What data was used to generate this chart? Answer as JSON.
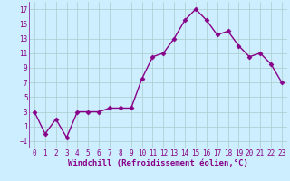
{
  "x": [
    0,
    1,
    2,
    3,
    4,
    5,
    6,
    7,
    8,
    9,
    10,
    11,
    12,
    13,
    14,
    15,
    16,
    17,
    18,
    19,
    20,
    21,
    22,
    23
  ],
  "y": [
    3,
    0,
    2,
    -0.5,
    3,
    3,
    3,
    3.5,
    3.5,
    3.5,
    7.5,
    10.5,
    11,
    13,
    15.5,
    17,
    15.5,
    13.5,
    14,
    12,
    10.5,
    11,
    9.5,
    7
  ],
  "line_color": "#880088",
  "marker": "D",
  "markersize": 2.5,
  "linewidth": 1.0,
  "xlabel": "Windchill (Refroidissement éolien,°C)",
  "xlabel_fontsize": 6.5,
  "bg_color": "#cceeff",
  "grid_color": "#aacccc",
  "ylim": [
    -2,
    18
  ],
  "xlim": [
    -0.5,
    23.5
  ],
  "yticks": [
    -1,
    1,
    3,
    5,
    7,
    9,
    11,
    13,
    15,
    17
  ],
  "xticks": [
    0,
    1,
    2,
    3,
    4,
    5,
    6,
    7,
    8,
    9,
    10,
    11,
    12,
    13,
    14,
    15,
    16,
    17,
    18,
    19,
    20,
    21,
    22,
    23
  ],
  "tick_fontsize": 5.5,
  "tick_color": "#880088"
}
